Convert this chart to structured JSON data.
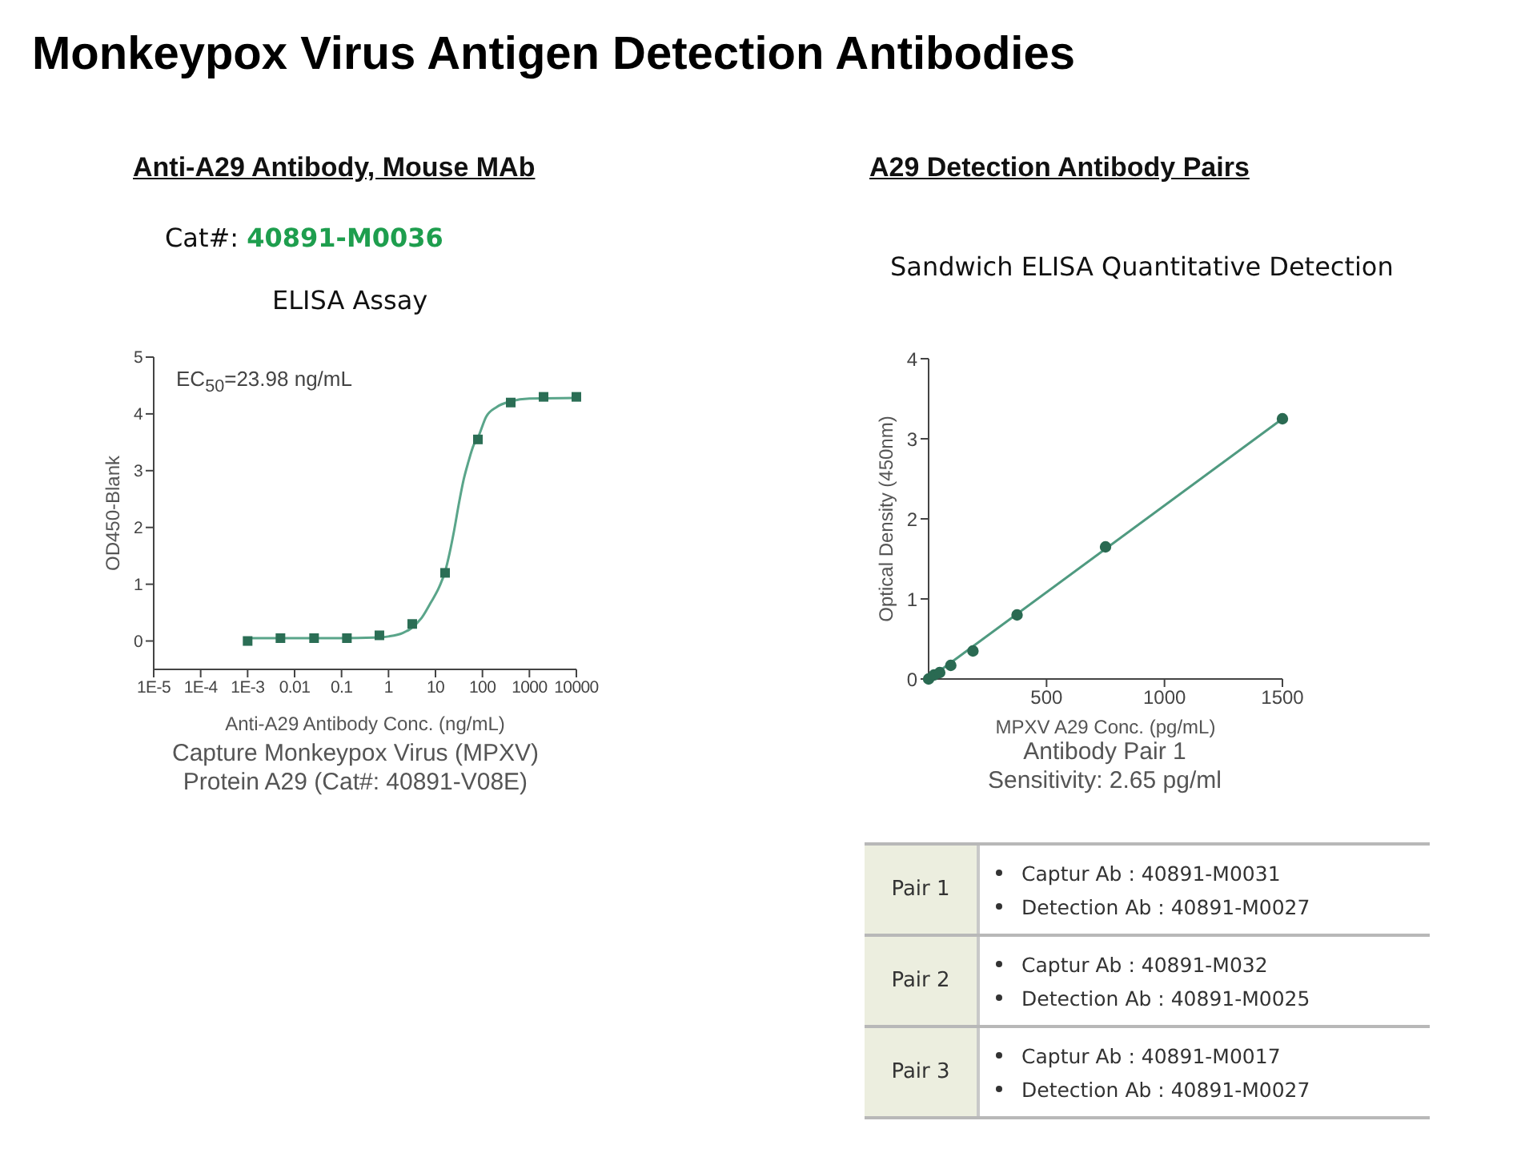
{
  "chart_data": [
    {
      "type": "other",
      "title": "Monkeypox Virus Antigen Detection Antibodies"
    },
    {
      "type": "scatter",
      "title": "Anti-A29 Antibody, Mouse MAb",
      "subtitle": "ELISA Assay",
      "xlabel": "Anti-A29 Antibody Conc. (ng/mL)",
      "ylabel": "OD450-Blank",
      "annotations": [
        "Cat#: 40891-M0036",
        "EC$_{50}$=23.98 ng/mL",
        "Capture Monkeypox Virus (MPXV) Protein A29 (Cat#: 40891-V08E)"
      ],
      "log": "x",
      "xlim": [
        1e-05,
        10000
      ],
      "xticks": [
        {
          "value": 1e-05,
          "label": "1E-5"
        },
        {
          "value": 0.0001,
          "label": "1E-4"
        },
        {
          "value": 0.001,
          "label": "1E-3"
        },
        0.01,
        0.1,
        1,
        10,
        100,
        1000,
        10000
      ],
      "ylim": [
        -0.5,
        5
      ],
      "yticks": [
        0,
        1,
        2,
        3,
        4,
        5
      ],
      "series": [
        {
          "type": "line",
          "color": "#5aa58a",
          "x": [
            0.001,
            0.01,
            0.1,
            0.5,
            1,
            2,
            3,
            5,
            8,
            12,
            16,
            20,
            25,
            32,
            40,
            50,
            65,
            80,
            120,
            200,
            400,
            1000,
            10000
          ],
          "values": [
            0.05,
            0.05,
            0.05,
            0.06,
            0.08,
            0.14,
            0.22,
            0.4,
            0.68,
            0.95,
            1.22,
            1.55,
            1.95,
            2.45,
            2.85,
            3.15,
            3.45,
            3.58,
            3.95,
            4.12,
            4.22,
            4.27,
            4.28
          ]
        },
        {
          "type": "scatter",
          "color": "#2b6e55",
          "marker": "square",
          "x": [
            0.001,
            0.005,
            0.026,
            0.13,
            0.64,
            3.2,
            16,
            80,
            400,
            2000,
            10000
          ],
          "values": [
            0,
            0.05,
            0.05,
            0.05,
            0.1,
            0.3,
            1.2,
            3.55,
            4.2,
            4.3,
            4.3
          ]
        }
      ]
    },
    {
      "type": "scatter",
      "title": "A29 Detection Antibody Pairs",
      "subtitle": "Sandwich ELISA Quantitative Detection",
      "xlabel": "MPXV A29 Conc. (pg/mL)",
      "ylabel": "Optical Density (450nm)",
      "annotations": [
        "Antibody Pair 1",
        "Sensitivity: 2.65 pg/ml"
      ],
      "xlim": [
        0,
        1500
      ],
      "xticks": [
        500,
        1000,
        1500
      ],
      "ylim": [
        0,
        4
      ],
      "yticks": [
        0,
        1,
        2,
        3,
        4
      ],
      "series": [
        {
          "type": "line",
          "color": "#4f9a80",
          "x": [
            0,
            1500
          ],
          "values": [
            0,
            3.25
          ]
        },
        {
          "type": "scatter",
          "color": "#2a6a52",
          "marker": "circle",
          "x": [
            0,
            23,
            47,
            94,
            188,
            375,
            750,
            1500
          ],
          "values": [
            0,
            0.05,
            0.08,
            0.17,
            0.35,
            0.8,
            1.65,
            3.25
          ]
        }
      ]
    },
    {
      "type": "other",
      "categories": [
        "Pair 1",
        "Pair 2",
        "Pair 3"
      ],
      "annotations": [
        "Captur Ab : 40891-M0031",
        "Detection Ab : 40891-M0027",
        "Captur Ab : 40891-M032",
        "Detection Ab : 40891-M0025",
        "Captur Ab : 40891-M0017",
        "Detection Ab : 40891-M0027"
      ]
    }
  ]
}
